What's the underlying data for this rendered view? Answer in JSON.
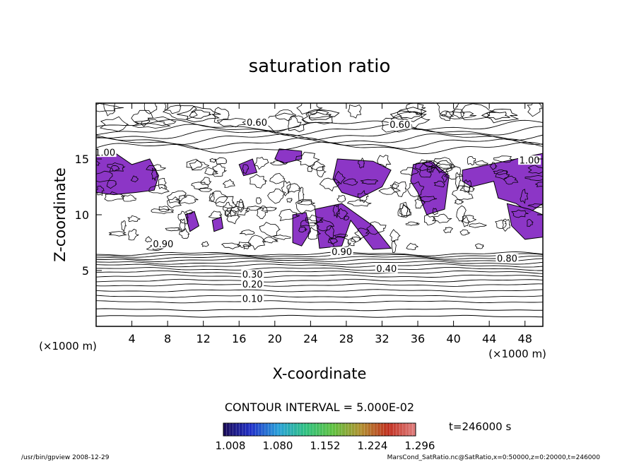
{
  "chart_data": {
    "type": "heatmap",
    "title": "saturation ratio",
    "xlabel": "X-coordinate",
    "ylabel": "Z-coordinate",
    "x_unit": "(×1000 m)",
    "z_unit": "(×1000 m)",
    "xlim": [
      0,
      50
    ],
    "zlim": [
      0,
      20
    ],
    "x_ticks": [
      4,
      8,
      12,
      16,
      20,
      24,
      28,
      32,
      36,
      40,
      44,
      48
    ],
    "z_ticks": [
      5,
      10,
      15
    ],
    "contour_interval_label": "CONTOUR INTERVAL = 5.000E-02",
    "contour_labels": [
      {
        "text": "0.10",
        "x": 17.5,
        "z": 2.4
      },
      {
        "text": "0.20",
        "x": 17.5,
        "z": 3.7
      },
      {
        "text": "0.30",
        "x": 17.5,
        "z": 4.6
      },
      {
        "text": "0.40",
        "x": 32.5,
        "z": 5.1
      },
      {
        "text": "0.60",
        "x": 18.0,
        "z": 18.2
      },
      {
        "text": "0.60",
        "x": 34.0,
        "z": 18.0
      },
      {
        "text": "0.80",
        "x": 46.0,
        "z": 6.0
      },
      {
        "text": "0.90",
        "x": 7.5,
        "z": 7.3
      },
      {
        "text": "0.90",
        "x": 27.5,
        "z": 6.6
      },
      {
        "text": "1.00",
        "x": 1.0,
        "z": 15.5
      },
      {
        "text": "1.00",
        "x": 48.5,
        "z": 14.8
      }
    ],
    "colorbar": {
      "ticks": [
        "1.008",
        "1.080",
        "1.152",
        "1.224",
        "1.296"
      ],
      "colors": [
        "#1a0a55",
        "#2030c8",
        "#28a0d8",
        "#30c080",
        "#60c040",
        "#b09030",
        "#c03020",
        "#e08080"
      ]
    },
    "time_label": "t=246000 s",
    "supersaturated_color": "#8020c0"
  },
  "footer": {
    "left": "/usr/bin/gpview   2008-12-29",
    "right": "MarsCond_SatRatio.nc@SatRatio,x=0:50000,z=0:20000,t=246000"
  }
}
